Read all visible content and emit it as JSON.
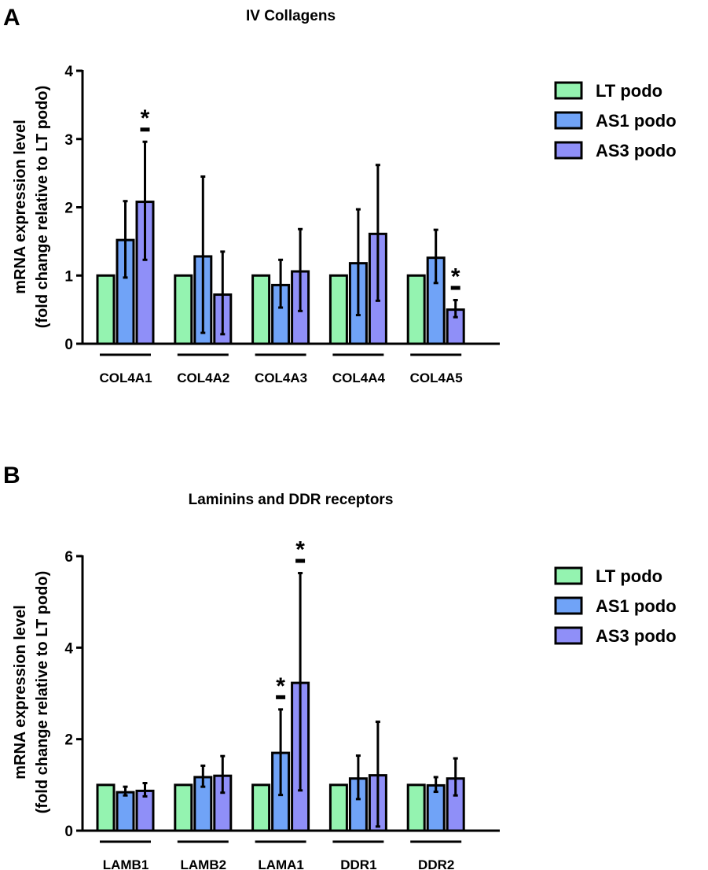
{
  "chart_data": [
    {
      "type": "bar",
      "panel_label": "A",
      "title": "IV Collagens",
      "ylabel": "mRNA expression level",
      "ylabel2": "(fold change relative to LT podo)",
      "xlabel": "",
      "ylim": [
        0,
        4
      ],
      "yticks": [
        0,
        1,
        2,
        3,
        4
      ],
      "legend_position": "right",
      "categories": [
        "COL4A1",
        "COL4A2",
        "COL4A3",
        "COL4A4",
        "COL4A5"
      ],
      "series": [
        {
          "name": "LT podo",
          "color": "#94f3b0",
          "values": [
            1,
            1,
            1,
            1,
            1
          ],
          "err_low": [
            null,
            null,
            null,
            null,
            null
          ],
          "err_high": [
            null,
            null,
            null,
            null,
            null
          ]
        },
        {
          "name": "AS1 podo",
          "color": "#70a3f7",
          "values": [
            1.52,
            1.28,
            0.86,
            1.18,
            1.26
          ],
          "err_low": [
            0.97,
            0.16,
            0.53,
            0.42,
            0.89
          ],
          "err_high": [
            2.09,
            2.45,
            1.23,
            1.97,
            1.67
          ]
        },
        {
          "name": "AS3 podo",
          "color": "#8f8ff8",
          "values": [
            2.08,
            0.72,
            1.06,
            1.61,
            0.5
          ],
          "err_low": [
            1.23,
            0.14,
            0.48,
            0.63,
            0.39
          ],
          "err_high": [
            2.96,
            1.35,
            1.68,
            2.62,
            0.64
          ]
        }
      ],
      "significance": [
        {
          "category": "COL4A1",
          "series": "AS3 podo",
          "mark": "*"
        },
        {
          "category": "COL4A5",
          "series": "AS3 podo",
          "mark": "*"
        }
      ]
    },
    {
      "type": "bar",
      "panel_label": "B",
      "title": "Laminins and DDR receptors",
      "ylabel": "mRNA expression level",
      "ylabel2": "(fold change relative to LT podo)",
      "xlabel": "",
      "ylim": [
        0,
        6
      ],
      "yticks": [
        0,
        2,
        4,
        6
      ],
      "legend_position": "right",
      "categories": [
        "LAMB1",
        "LAMB2",
        "LAMA1",
        "DDR1",
        "DDR2"
      ],
      "series": [
        {
          "name": "LT podo",
          "color": "#94f3b0",
          "values": [
            1,
            1,
            1,
            1,
            1
          ],
          "err_low": [
            null,
            null,
            null,
            null,
            null
          ],
          "err_high": [
            null,
            null,
            null,
            null,
            null
          ]
        },
        {
          "name": "AS1 podo",
          "color": "#70a3f7",
          "values": [
            0.84,
            1.17,
            1.7,
            1.14,
            0.99
          ],
          "err_low": [
            0.77,
            0.96,
            0.78,
            0.69,
            0.85
          ],
          "err_high": [
            0.96,
            1.42,
            2.65,
            1.64,
            1.17
          ]
        },
        {
          "name": "AS3 podo",
          "color": "#8f8ff8",
          "values": [
            0.87,
            1.2,
            3.23,
            1.21,
            1.14
          ],
          "err_low": [
            0.75,
            0.83,
            0.88,
            0.09,
            0.77
          ],
          "err_high": [
            1.04,
            1.63,
            5.63,
            2.38,
            1.58
          ]
        }
      ],
      "significance": [
        {
          "category": "LAMA1",
          "series": "AS1 podo",
          "mark": "*"
        },
        {
          "category": "LAMA1",
          "series": "AS3 podo",
          "mark": "*"
        }
      ]
    }
  ]
}
